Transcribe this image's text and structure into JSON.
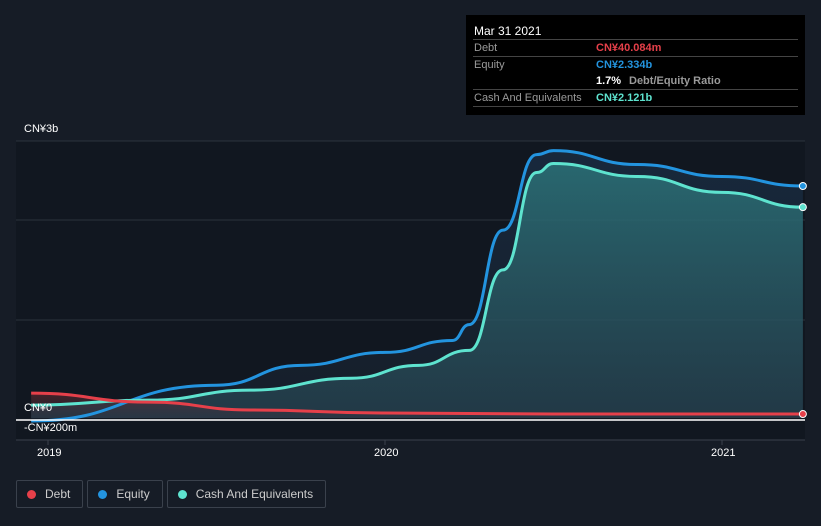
{
  "tooltip": {
    "date": "Mar 31 2021",
    "debt_label": "Debt",
    "debt_value": "CN¥40.084m",
    "equity_label": "Equity",
    "equity_value": "CN¥2.334b",
    "ratio_value": "1.7%",
    "ratio_label": "Debt/Equity Ratio",
    "cash_label": "Cash And Equivalents",
    "cash_value": "CN¥2.121b"
  },
  "legend": [
    {
      "label": "Debt",
      "color": "#e6404a"
    },
    {
      "label": "Equity",
      "color": "#2394df"
    },
    {
      "label": "Cash And Equivalents",
      "color": "#5ee3cf"
    }
  ],
  "chart_data": {
    "type": "area",
    "ylim": [
      -0.22,
      2.79
    ],
    "xlim": [
      2018.95,
      2021.24
    ],
    "y_tick_labels": [
      "CN¥3b",
      "CN¥0",
      "-CN¥200m"
    ],
    "x_tick_labels": [
      "2019",
      "2020",
      "2021"
    ],
    "x_ticks": [
      2019,
      2020,
      2021
    ],
    "units": "CN¥ billions",
    "series": [
      {
        "name": "Debt",
        "color": "#e6404a",
        "x": [
          2018.95,
          2019.3,
          2019.6,
          2020.0,
          2020.5,
          2021.24
        ],
        "y": [
          0.25,
          0.16,
          0.08,
          0.05,
          0.04,
          0.04
        ]
      },
      {
        "name": "Equity",
        "color": "#2394df",
        "x": [
          2018.95,
          2019.5,
          2019.75,
          2020.0,
          2020.2,
          2020.25,
          2020.35,
          2020.45,
          2020.5,
          2020.75,
          2021.0,
          2021.24
        ],
        "y": [
          -0.03,
          0.33,
          0.53,
          0.66,
          0.78,
          0.94,
          1.89,
          2.65,
          2.69,
          2.55,
          2.43,
          2.334
        ]
      },
      {
        "name": "Cash And Equivalents",
        "color": "#5ee3cf",
        "x": [
          2018.95,
          2019.3,
          2019.6,
          2019.9,
          2020.1,
          2020.25,
          2020.35,
          2020.45,
          2020.5,
          2020.75,
          2021.0,
          2021.24
        ],
        "y": [
          0.13,
          0.18,
          0.28,
          0.4,
          0.53,
          0.68,
          1.49,
          2.47,
          2.56,
          2.43,
          2.27,
          2.121
        ]
      }
    ]
  }
}
